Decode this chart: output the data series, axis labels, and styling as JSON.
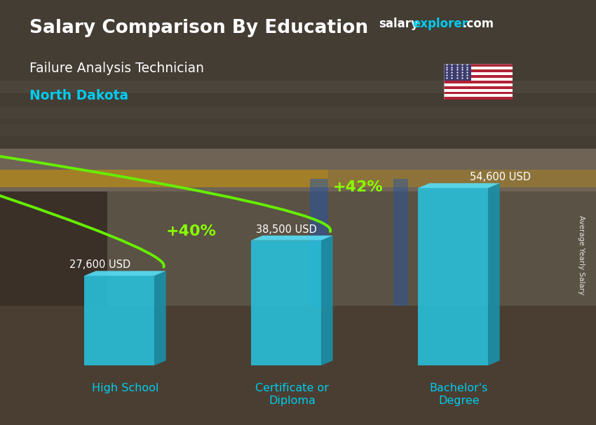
{
  "title_main": "Salary Comparison By Education",
  "title_sub1": "Failure Analysis Technician",
  "title_sub2": "North Dakota",
  "categories": [
    "High School",
    "Certificate or\nDiploma",
    "Bachelor's\nDegree"
  ],
  "values": [
    27600,
    38500,
    54600
  ],
  "labels": [
    "27,600 USD",
    "38,500 USD",
    "54,600 USD"
  ],
  "pct_labels": [
    "+40%",
    "+42%"
  ],
  "bar_front_color": "#29b8d4",
  "bar_top_color": "#50d8f0",
  "bar_side_color": "#1a8099",
  "text_color_white": "#ffffff",
  "text_color_cyan": "#00ccee",
  "text_color_green": "#88ff00",
  "arrow_color": "#66ee00",
  "bg_top_color": "#4a4035",
  "bg_bottom_color": "#3a3028",
  "watermark_salary": "salary",
  "watermark_explorer": "explorer",
  "watermark_com": ".com",
  "side_label": "Average Yearly Salary",
  "ylim_max": 68000,
  "bar_width": 0.42,
  "x_positions": [
    0.5,
    1.5,
    2.5
  ]
}
